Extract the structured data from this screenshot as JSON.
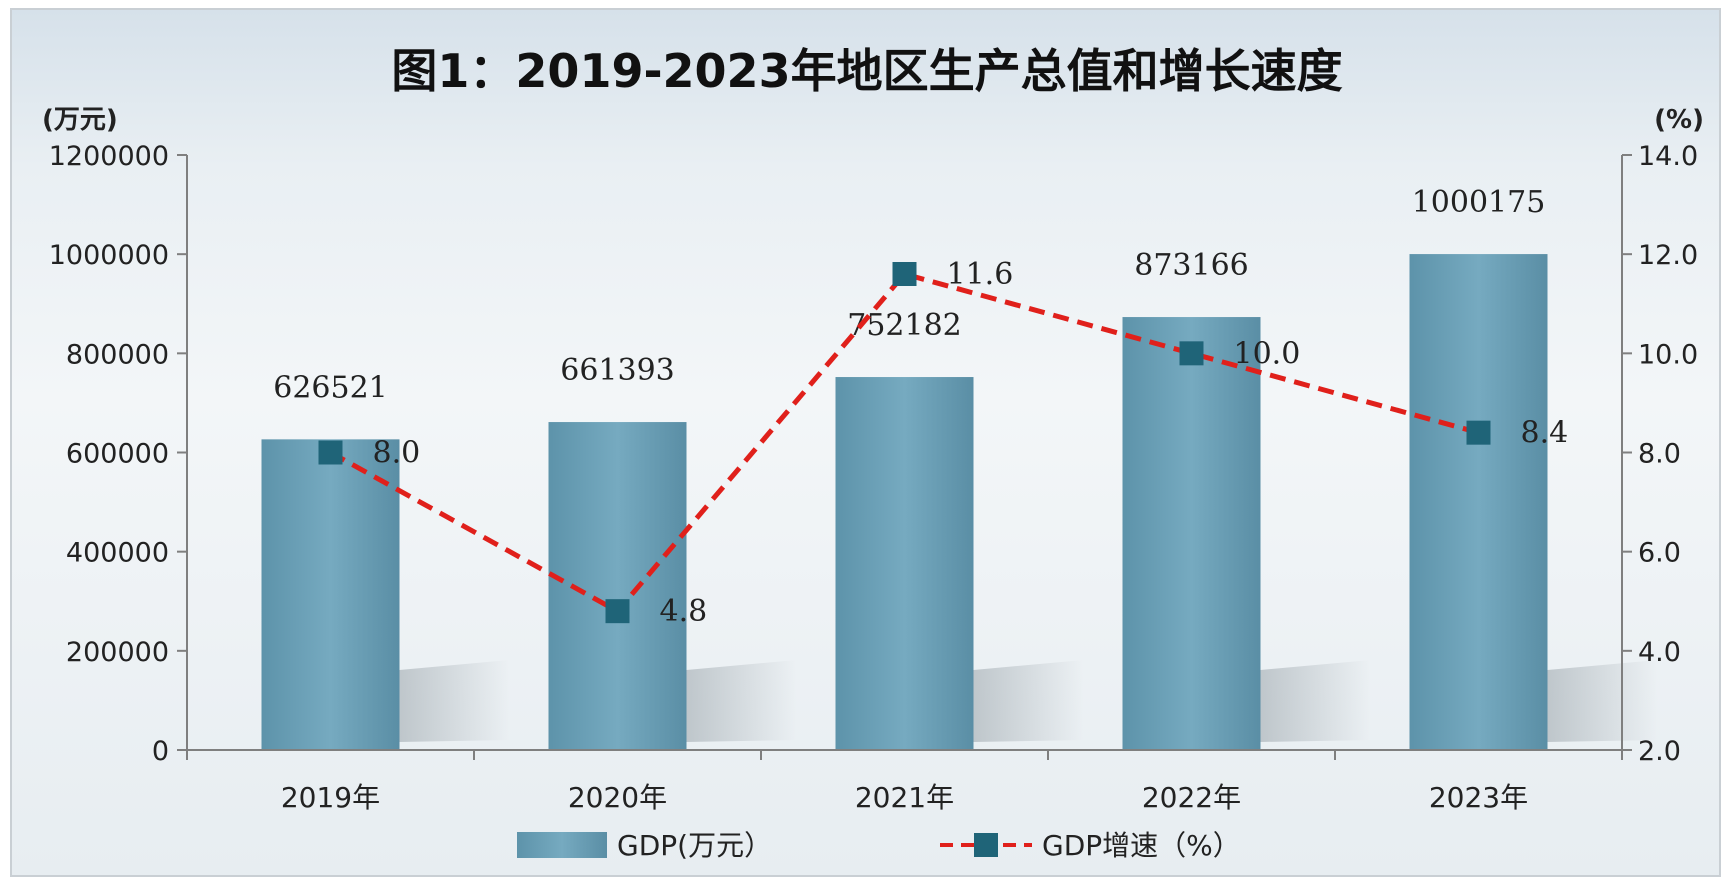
{
  "chart_data": {
    "type": "bar",
    "title": "图1：2019-2023年地区生产总值和增长速度",
    "categories": [
      "2019年",
      "2020年",
      "2021年",
      "2022年",
      "2023年"
    ],
    "y_left": {
      "unit": "(万元)",
      "range": [
        0,
        1200000
      ],
      "ticks": [
        "0",
        "200000",
        "400000",
        "600000",
        "800000",
        "1000000",
        "1200000"
      ]
    },
    "y_right": {
      "unit": "(%)",
      "range": [
        2.0,
        14.0
      ],
      "ticks": [
        "2.0",
        "4.0",
        "6.0",
        "8.0",
        "10.0",
        "12.0",
        "14.0"
      ]
    },
    "series": [
      {
        "name": "GDP(万元）",
        "type": "bar",
        "axis": "left",
        "color": "#6a9fb5",
        "values": [
          626521,
          661393,
          752182,
          873166,
          1000175
        ],
        "labels": [
          "626521",
          "661393",
          "752182",
          "873166",
          "1000175"
        ]
      },
      {
        "name": "GDP增速（%）",
        "type": "line",
        "axis": "right",
        "line_color": "#e0201b",
        "marker_color": "#1f6478",
        "line_style": "dashed",
        "values": [
          8.0,
          4.8,
          11.6,
          10.0,
          8.4
        ],
        "labels": [
          "8.0",
          "4.8",
          "11.6",
          "10.0",
          "8.4"
        ]
      }
    ],
    "legend_position": "bottom",
    "grid": false
  }
}
